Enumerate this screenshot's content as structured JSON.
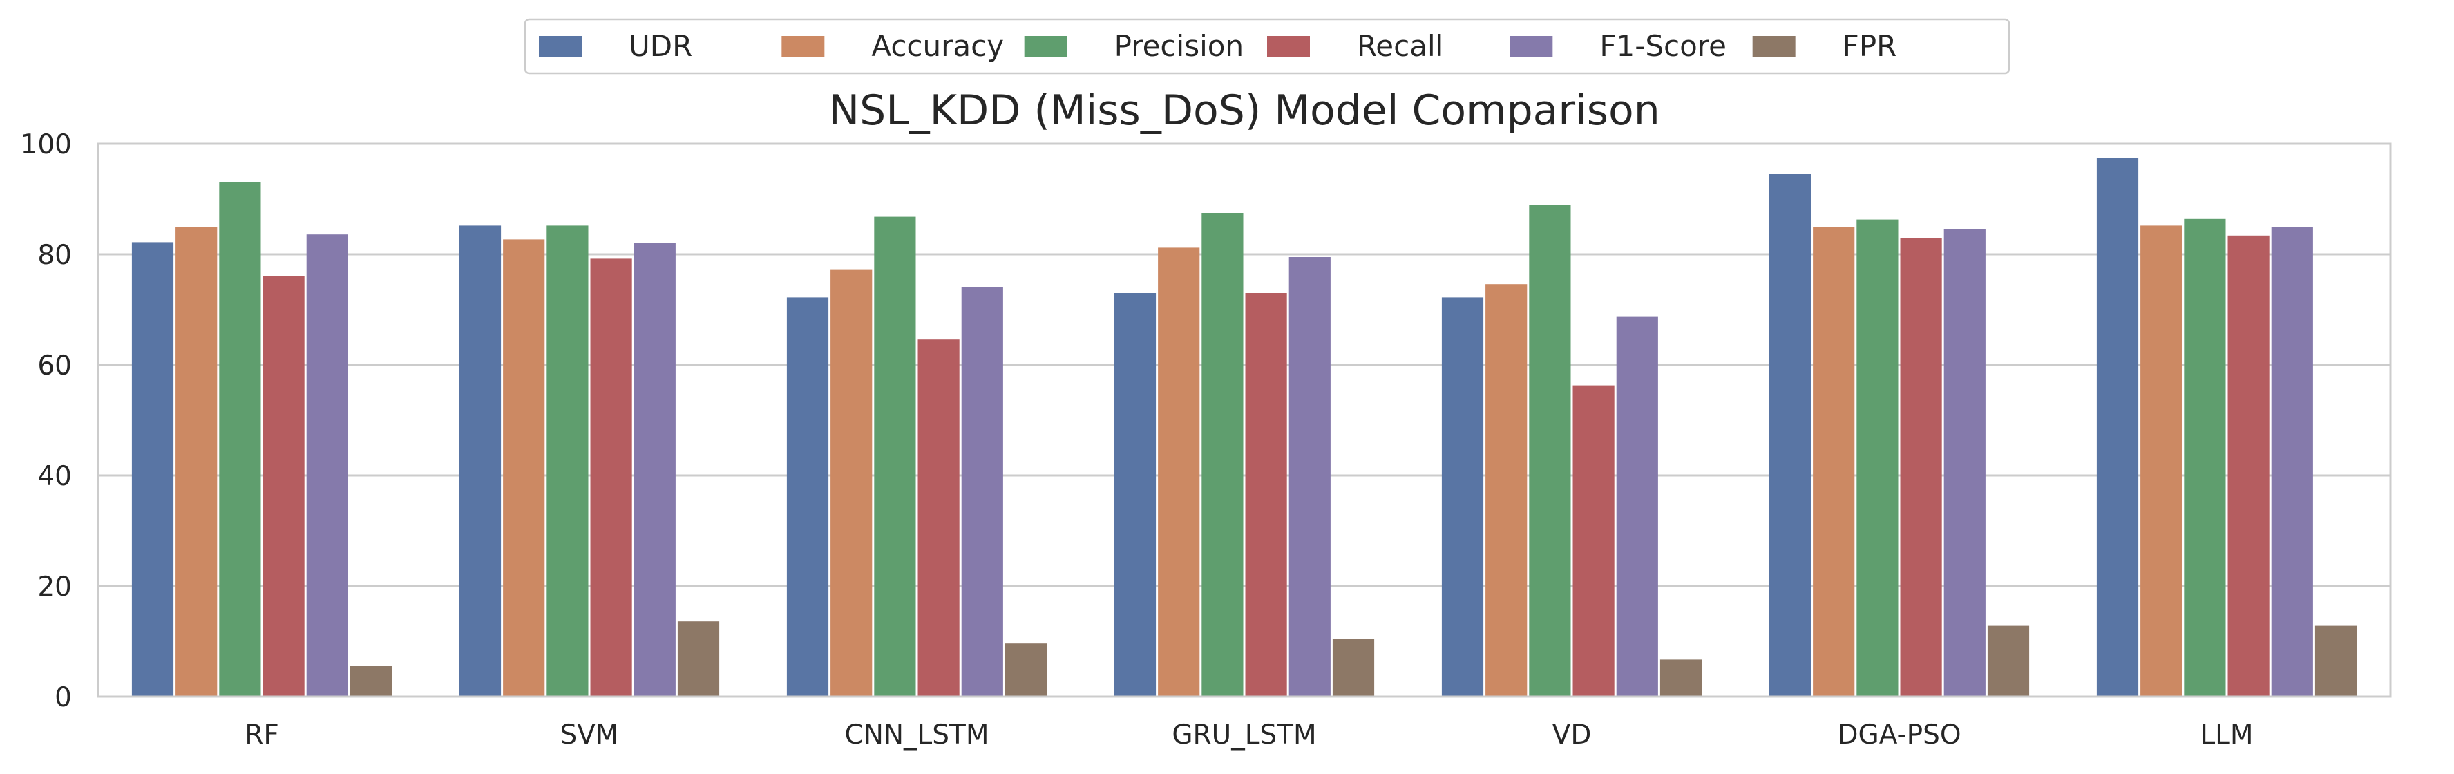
{
  "chart_data": {
    "type": "bar",
    "title": "NSL_KDD (Miss_DoS) Model Comparison",
    "xlabel": "",
    "ylabel": "",
    "ylim": [
      0,
      100
    ],
    "yticks": [
      0,
      20,
      40,
      60,
      80,
      100
    ],
    "grid": true,
    "legend_position": "top-center",
    "categories": [
      "RF",
      "SVM",
      "CNN_LSTM",
      "GRU_LSTM",
      "VD",
      "DGA-PSO",
      "LLM"
    ],
    "series": [
      {
        "name": "UDR",
        "color": "#5975A4",
        "values": [
          82.2,
          85.2,
          72.2,
          73.0,
          72.2,
          94.5,
          97.5
        ]
      },
      {
        "name": "Accuracy",
        "color": "#CC8963",
        "values": [
          85.0,
          82.7,
          77.3,
          81.2,
          74.6,
          85.0,
          85.2
        ]
      },
      {
        "name": "Precision",
        "color": "#5F9E6E",
        "values": [
          93.0,
          85.2,
          86.8,
          87.5,
          89.0,
          86.3,
          86.4
        ]
      },
      {
        "name": "Recall",
        "color": "#B55D60",
        "values": [
          76.0,
          79.2,
          64.6,
          73.0,
          56.3,
          83.0,
          83.4
        ]
      },
      {
        "name": "F1-Score",
        "color": "#857AAB",
        "values": [
          83.6,
          82.0,
          74.0,
          79.5,
          68.8,
          84.5,
          85.0
        ]
      },
      {
        "name": "FPR",
        "color": "#8D7866",
        "values": [
          5.6,
          13.6,
          9.6,
          10.4,
          6.7,
          12.8,
          12.8
        ]
      }
    ]
  }
}
